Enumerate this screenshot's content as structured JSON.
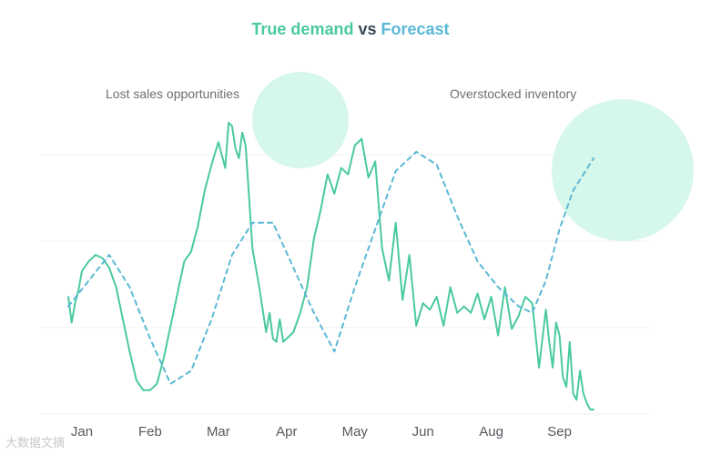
{
  "chart_data": {
    "type": "line",
    "title": {
      "series1": "True demand",
      "connector": "vs",
      "series2": "Forecast"
    },
    "xlabel": "",
    "ylabel": "",
    "x_range": [
      0,
      8.5
    ],
    "ylim": [
      0,
      100
    ],
    "grid": "horizontal",
    "months": [
      {
        "label": "Jan",
        "x": 0.2
      },
      {
        "label": "Feb",
        "x": 1.2
      },
      {
        "label": "Mar",
        "x": 2.2
      },
      {
        "label": "Apr",
        "x": 3.2
      },
      {
        "label": "May",
        "x": 4.2
      },
      {
        "label": "Jun",
        "x": 5.2
      },
      {
        "label": "Aug",
        "x": 6.2
      },
      {
        "label": "Sep",
        "x": 7.2
      }
    ],
    "series": [
      {
        "name": "True demand",
        "style": "solid",
        "color": "#4ac9a0",
        "x": [
          0,
          0.05,
          0.1,
          0.15,
          0.2,
          0.3,
          0.4,
          0.5,
          0.6,
          0.7,
          0.8,
          0.9,
          1.0,
          1.1,
          1.2,
          1.3,
          1.4,
          1.5,
          1.6,
          1.7,
          1.8,
          1.9,
          2.0,
          2.1,
          2.2,
          2.3,
          2.35,
          2.4,
          2.45,
          2.5,
          2.55,
          2.6,
          2.7,
          2.8,
          2.9,
          2.95,
          3.0,
          3.05,
          3.1,
          3.15,
          3.2,
          3.3,
          3.4,
          3.5,
          3.6,
          3.7,
          3.8,
          3.9,
          4.0,
          4.1,
          4.2,
          4.3,
          4.4,
          4.5,
          4.6,
          4.7,
          4.8,
          4.9,
          5.0,
          5.1,
          5.2,
          5.3,
          5.4,
          5.5,
          5.6,
          5.7,
          5.8,
          5.9,
          6.0,
          6.1,
          6.2,
          6.3,
          6.4,
          6.5,
          6.6,
          6.7,
          6.8,
          6.9,
          7.0,
          7.05,
          7.1,
          7.15,
          7.2,
          7.25,
          7.3,
          7.35,
          7.4,
          7.45,
          7.5,
          7.55,
          7.6,
          7.65,
          7.7
        ],
        "values": [
          35,
          27,
          33,
          37,
          43,
          46,
          48,
          47,
          44,
          38,
          28,
          18,
          9,
          6,
          6,
          8,
          16,
          26,
          36,
          46,
          49,
          57,
          68,
          76,
          83,
          75,
          89,
          88,
          81,
          78,
          86,
          82,
          50,
          38,
          24,
          30,
          22,
          21,
          28,
          21,
          22,
          24,
          30,
          38,
          53,
          62,
          73,
          67,
          75,
          73,
          82,
          84,
          72,
          77,
          50,
          40,
          58,
          34,
          48,
          26,
          33,
          31,
          35,
          26,
          38,
          30,
          32,
          30,
          36,
          28,
          35,
          23,
          38,
          25,
          29,
          35,
          33,
          13,
          31,
          21,
          13,
          27,
          23,
          10,
          7,
          21,
          5,
          3,
          12,
          5,
          2,
          0,
          0
        ]
      },
      {
        "name": "Forecast",
        "style": "dashed",
        "color": "#5ab8d6",
        "x": [
          0,
          0.3,
          0.6,
          0.9,
          1.2,
          1.5,
          1.8,
          2.1,
          2.4,
          2.7,
          3.0,
          3.3,
          3.6,
          3.9,
          4.2,
          4.5,
          4.8,
          5.1,
          5.4,
          5.7,
          6.0,
          6.3,
          6.6,
          6.8,
          7.0,
          7.2,
          7.4,
          7.7
        ],
        "values": [
          32,
          40,
          48,
          38,
          22,
          8,
          12,
          28,
          48,
          58,
          58,
          44,
          30,
          18,
          38,
          56,
          74,
          80,
          76,
          60,
          46,
          38,
          32,
          30,
          40,
          56,
          68,
          78
        ]
      }
    ],
    "annotations": [
      {
        "text": "Lost sales opportunities",
        "position": "top-left"
      },
      {
        "text": "Overstocked inventory",
        "position": "top-right"
      }
    ]
  },
  "watermark": "大数据文摘"
}
